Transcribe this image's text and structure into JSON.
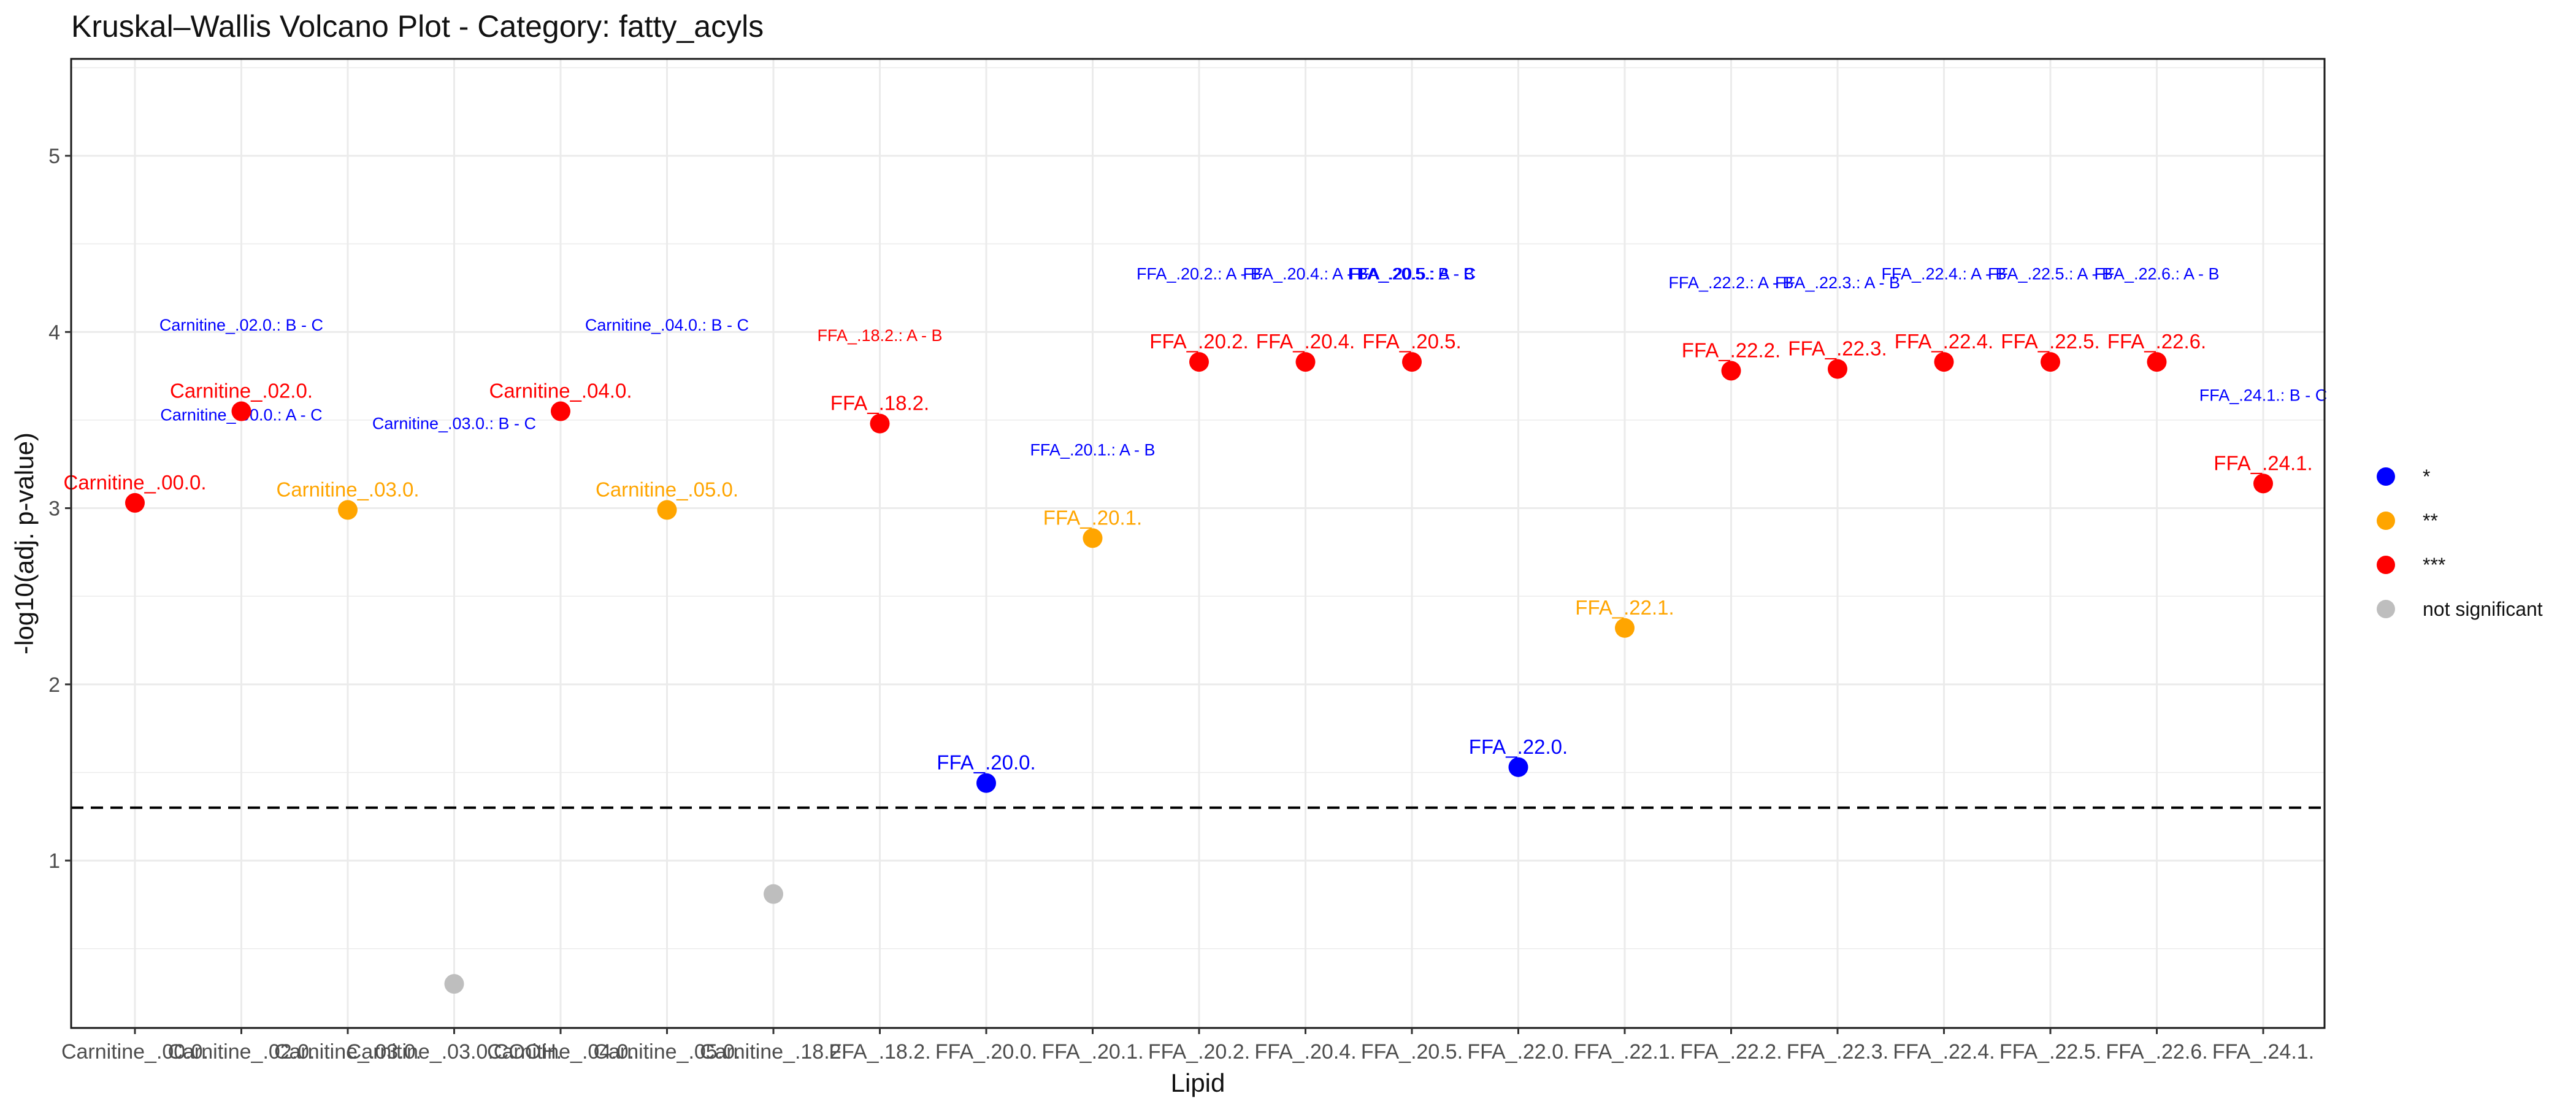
{
  "chart_data": {
    "type": "scatter",
    "title": "Kruskal–Wallis Volcano Plot - Category: fatty_acyls",
    "xlabel": "Lipid",
    "ylabel": "-log10(adj. p-value)",
    "ylim": [
      0.05,
      5.55
    ],
    "yticks": [
      1,
      2,
      3,
      4,
      5
    ],
    "grid": true,
    "threshold_y": 1.3,
    "legend_placement": "right",
    "categories": [
      "Carnitine_.00.0.",
      "Carnitine_.02.0.",
      "Carnitine_.03.0.",
      "Carnitine_.03.0.COOH.",
      "Carnitine_.04.0.",
      "Carnitine_.05.0.",
      "Carnitine_.18.2.",
      "FFA_.18.2.",
      "FFA_.20.0.",
      "FFA_.20.1.",
      "FFA_.20.2.",
      "FFA_.20.4.",
      "FFA_.20.5.",
      "FFA_.22.0.",
      "FFA_.22.1.",
      "FFA_.22.2.",
      "FFA_.22.3.",
      "FFA_.22.4.",
      "FFA_.22.5.",
      "FFA_.22.6.",
      "FFA_.24.1."
    ],
    "legend": [
      {
        "key": "*",
        "label": "*",
        "color": "#0000ff"
      },
      {
        "key": "**",
        "label": "**",
        "color": "#ffa500"
      },
      {
        "key": "***",
        "label": "***",
        "color": "#ff0000"
      },
      {
        "key": "ns",
        "label": "not significant",
        "color": "#bebebe"
      }
    ],
    "points": [
      {
        "x": "Carnitine_.00.0.",
        "y": 3.03,
        "sig": "***",
        "label": "Carnitine_.00.0."
      },
      {
        "x": "Carnitine_.02.0.",
        "y": 3.55,
        "sig": "***",
        "label": "Carnitine_.02.0."
      },
      {
        "x": "Carnitine_.03.0.",
        "y": 2.99,
        "sig": "**",
        "label": "Carnitine_.03.0."
      },
      {
        "x": "Carnitine_.03.0.COOH.",
        "y": 0.3,
        "sig": "ns",
        "label": ""
      },
      {
        "x": "Carnitine_.04.0.",
        "y": 3.55,
        "sig": "***",
        "label": "Carnitine_.04.0."
      },
      {
        "x": "Carnitine_.05.0.",
        "y": 2.99,
        "sig": "**",
        "label": "Carnitine_.05.0."
      },
      {
        "x": "Carnitine_.18.2.",
        "y": 0.81,
        "sig": "ns",
        "label": ""
      },
      {
        "x": "FFA_.18.2.",
        "y": 3.48,
        "sig": "***",
        "label": "FFA_.18.2."
      },
      {
        "x": "FFA_.20.0.",
        "y": 1.44,
        "sig": "*",
        "label": "FFA_.20.0."
      },
      {
        "x": "FFA_.20.1.",
        "y": 2.83,
        "sig": "**",
        "label": "FFA_.20.1."
      },
      {
        "x": "FFA_.20.2.",
        "y": 3.83,
        "sig": "***",
        "label": "FFA_.20.2."
      },
      {
        "x": "FFA_.20.4.",
        "y": 3.83,
        "sig": "***",
        "label": "FFA_.20.4."
      },
      {
        "x": "FFA_.20.5.",
        "y": 3.83,
        "sig": "***",
        "label": "FFA_.20.5."
      },
      {
        "x": "FFA_.22.0.",
        "y": 1.53,
        "sig": "*",
        "label": "FFA_.22.0."
      },
      {
        "x": "FFA_.22.1.",
        "y": 2.32,
        "sig": "**",
        "label": "FFA_.22.1."
      },
      {
        "x": "FFA_.22.2.",
        "y": 3.78,
        "sig": "***",
        "label": "FFA_.22.2."
      },
      {
        "x": "FFA_.22.3.",
        "y": 3.79,
        "sig": "***",
        "label": "FFA_.22.3."
      },
      {
        "x": "FFA_.22.4.",
        "y": 3.83,
        "sig": "***",
        "label": "FFA_.22.4."
      },
      {
        "x": "FFA_.22.5.",
        "y": 3.83,
        "sig": "***",
        "label": "FFA_.22.5."
      },
      {
        "x": "FFA_.22.6.",
        "y": 3.83,
        "sig": "***",
        "label": "FFA_.22.6."
      },
      {
        "x": "FFA_.24.1.",
        "y": 3.14,
        "sig": "***",
        "label": "FFA_.24.1."
      }
    ],
    "comparison_labels": [
      {
        "x": "Carnitine_.02.0.",
        "y": 4.04,
        "text": "Carnitine_.02.0.: B - C",
        "color": "#0000ff"
      },
      {
        "x": "Carnitine_.02.0.",
        "y": 3.53,
        "text": "Carnitine_.00.0.: A - C",
        "color": "#0000ff"
      },
      {
        "x": "Carnitine_.03.0.COOH.",
        "y": 3.48,
        "text": "Carnitine_.03.0.: B - C",
        "color": "#0000ff"
      },
      {
        "x": "Carnitine_.05.0.",
        "y": 4.04,
        "text": "Carnitine_.04.0.: B - C",
        "color": "#0000ff"
      },
      {
        "x": "FFA_.18.2.",
        "y": 3.98,
        "text": "FFA_.18.2.: A - B",
        "color": "#ff0000"
      },
      {
        "x": "FFA_.20.1.",
        "y": 3.33,
        "text": "FFA_.20.1.: A - B",
        "color": "#0000ff"
      },
      {
        "x": "FFA_.20.2.",
        "y": 4.33,
        "text": "FFA_.20.2.: A - B",
        "color": "#0000ff"
      },
      {
        "x": "FFA_.20.4.",
        "y": 4.33,
        "text": "FFA_.20.4.: A - B",
        "color": "#0000ff"
      },
      {
        "x": "FFA_.20.5.",
        "y": 4.33,
        "text": "FFA_.20.5.: A - B",
        "color": "#0000ff"
      },
      {
        "x": "FFA_.20.5.",
        "y": 4.33,
        "text": "FFA_.20.5.: B - C",
        "color": "#0000ff"
      },
      {
        "x": "FFA_.22.2.",
        "y": 4.28,
        "text": "FFA_.22.2.: A - B",
        "color": "#0000ff"
      },
      {
        "x": "FFA_.22.3.",
        "y": 4.28,
        "text": "FFA_.22.3.: A - B",
        "color": "#0000ff"
      },
      {
        "x": "FFA_.22.4.",
        "y": 4.33,
        "text": "FFA_.22.4.: A - B",
        "color": "#0000ff"
      },
      {
        "x": "FFA_.22.5.",
        "y": 4.33,
        "text": "FFA_.22.5.: A - B",
        "color": "#0000ff"
      },
      {
        "x": "FFA_.22.6.",
        "y": 4.33,
        "text": "FFA_.22.6.: A - B",
        "color": "#0000ff"
      },
      {
        "x": "FFA_.24.1.",
        "y": 3.64,
        "text": "FFA_.24.1.: B - C",
        "color": "#0000ff"
      }
    ]
  }
}
